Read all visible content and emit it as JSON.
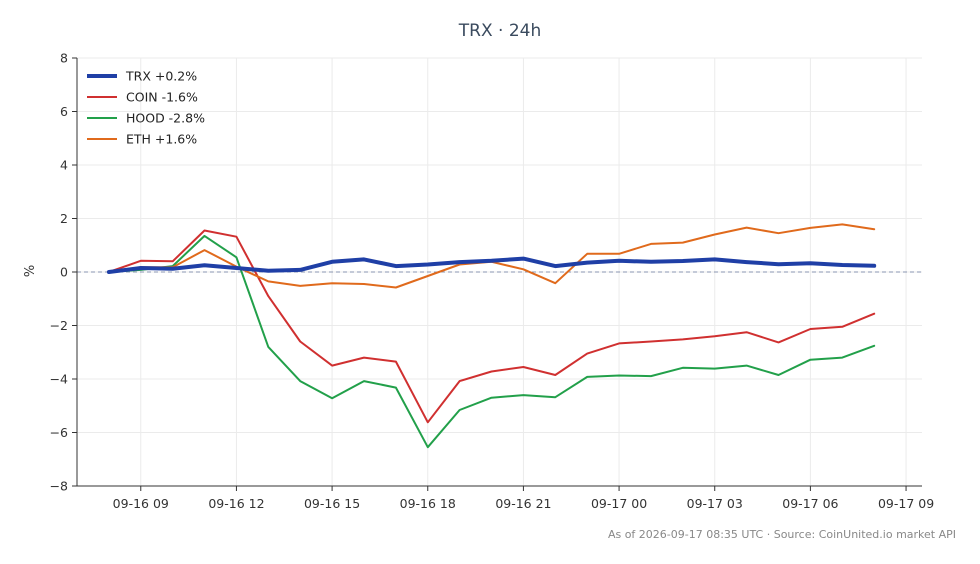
{
  "chart_data": {
    "type": "line",
    "title": "TRX · 24h",
    "ylabel": "%",
    "xlabel": "",
    "ylim": [
      -8,
      8
    ],
    "yticks": [
      -8,
      -6,
      -4,
      -2,
      0,
      2,
      4,
      6,
      8
    ],
    "ytick_labels": [
      "−8",
      "−6",
      "−4",
      "−2",
      "0",
      "2",
      "4",
      "6",
      "8"
    ],
    "xlim": [
      "09-16 07:00",
      "09-17 09:30"
    ],
    "xticks": [
      "09-16 09",
      "09-16 12",
      "09-16 15",
      "09-16 18",
      "09-16 21",
      "09-17 00",
      "09-17 03",
      "09-17 06",
      "09-17 09"
    ],
    "x": [
      "09-16 08:00",
      "09-16 09:00",
      "09-16 10:00",
      "09-16 11:00",
      "09-16 12:00",
      "09-16 13:00",
      "09-16 14:00",
      "09-16 15:00",
      "09-16 16:00",
      "09-16 17:00",
      "09-16 18:00",
      "09-16 19:00",
      "09-16 20:00",
      "09-16 21:00",
      "09-16 22:00",
      "09-16 23:00",
      "09-17 00:00",
      "09-17 01:00",
      "09-17 02:00",
      "09-17 03:00",
      "09-17 04:00",
      "09-17 05:00",
      "09-17 06:00",
      "09-17 07:00",
      "09-17 08:00"
    ],
    "baseline": 0,
    "grid": true,
    "legend_position": "top-left",
    "series": [
      {
        "name": "TRX +0.2%",
        "color": "#1f3fa6",
        "emphasis": true,
        "values": [
          0.0,
          0.15,
          0.12,
          0.25,
          0.15,
          0.05,
          0.08,
          0.38,
          0.47,
          0.22,
          0.28,
          0.37,
          0.42,
          0.5,
          0.22,
          0.35,
          0.42,
          0.38,
          0.41,
          0.47,
          0.37,
          0.29,
          0.33,
          0.26,
          0.23
        ]
      },
      {
        "name": "COIN -1.6%",
        "color": "#d03030",
        "emphasis": false,
        "values": [
          0.0,
          0.42,
          0.4,
          1.55,
          1.32,
          -0.9,
          -2.6,
          -3.5,
          -3.2,
          -3.35,
          -5.62,
          -4.08,
          -3.72,
          -3.55,
          -3.85,
          -3.05,
          -2.67,
          -2.6,
          -2.52,
          -2.4,
          -2.25,
          -2.63,
          -2.13,
          -2.05,
          -1.56
        ]
      },
      {
        "name": "HOOD -2.8%",
        "color": "#22a04a",
        "emphasis": false,
        "values": [
          0.0,
          0.08,
          0.22,
          1.35,
          0.55,
          -2.8,
          -4.08,
          -4.72,
          -4.08,
          -4.32,
          -6.55,
          -5.16,
          -4.7,
          -4.6,
          -4.68,
          -3.92,
          -3.87,
          -3.89,
          -3.58,
          -3.61,
          -3.5,
          -3.85,
          -3.28,
          -3.2,
          -2.76
        ]
      },
      {
        "name": "ETH +1.6%",
        "color": "#e06a1c",
        "emphasis": false,
        "values": [
          0.0,
          0.18,
          0.18,
          0.82,
          0.2,
          -0.35,
          -0.52,
          -0.42,
          -0.45,
          -0.58,
          -0.15,
          0.28,
          0.38,
          0.1,
          -0.42,
          0.68,
          0.68,
          1.05,
          1.1,
          1.4,
          1.66,
          1.45,
          1.65,
          1.78,
          1.6
        ]
      }
    ]
  },
  "footnote": "As of 2026-09-17 08:35 UTC · Source: CoinUnited.io market API"
}
